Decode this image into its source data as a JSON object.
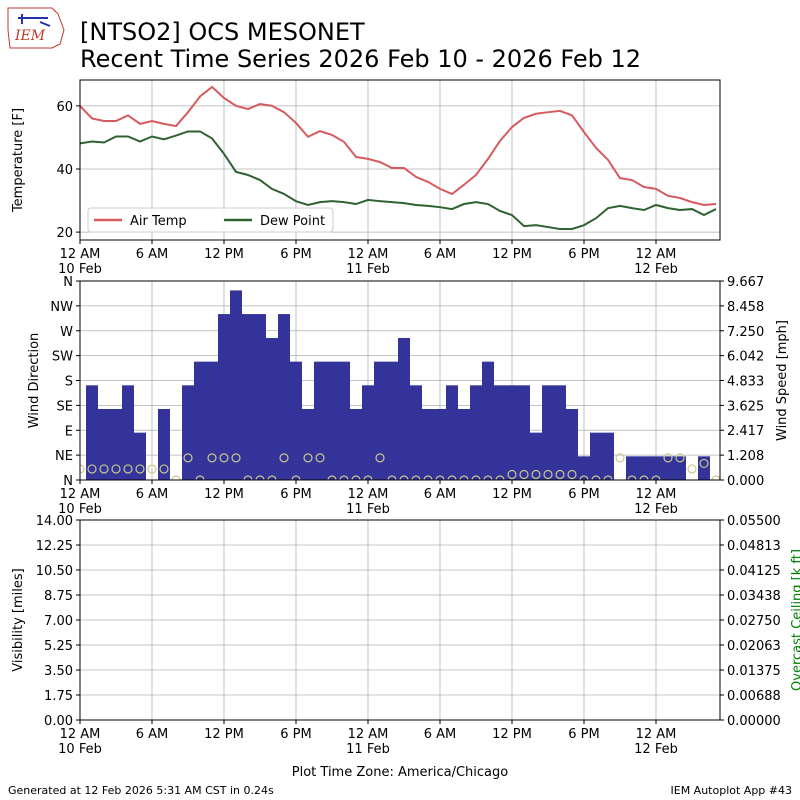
{
  "header": {
    "title": "[NTSO2] OCS MESONET",
    "subtitle": "Recent Time Series 2026 Feb 10 - 2026 Feb 12",
    "logo": "IEM"
  },
  "footer": {
    "left": "Generated at 12 Feb 2026 5:31 AM CST in 0.24s",
    "right": "IEM Autoplot App #43"
  },
  "chart_data": [
    {
      "type": "line",
      "ylabel": "Temperature [F]",
      "grid": true,
      "legend": "lower left",
      "xlim": [
        "2026-02-10 00:00",
        "2026-02-12 05:20"
      ],
      "xticks": [
        {
          "value": "2026-02-10 00:00",
          "label": "12 AM\n10 Feb"
        },
        {
          "value": "2026-02-10 06:00",
          "label": "6 AM"
        },
        {
          "value": "2026-02-10 12:00",
          "label": "12 PM"
        },
        {
          "value": "2026-02-10 18:00",
          "label": "6 PM"
        },
        {
          "value": "2026-02-11 00:00",
          "label": "12 AM\n11 Feb"
        },
        {
          "value": "2026-02-11 06:00",
          "label": "6 AM"
        },
        {
          "value": "2026-02-11 12:00",
          "label": "12 PM"
        },
        {
          "value": "2026-02-11 18:00",
          "label": "6 PM"
        },
        {
          "value": "2026-02-12 00:00",
          "label": "12 AM\n12 Feb"
        }
      ],
      "ylim": [
        17.5,
        68.2
      ],
      "yticks": [
        20,
        40,
        60
      ],
      "x": [
        "2026-02-10 00:00",
        "2026-02-10 01:00",
        "2026-02-10 02:00",
        "2026-02-10 03:00",
        "2026-02-10 04:00",
        "2026-02-10 05:00",
        "2026-02-10 06:00",
        "2026-02-10 07:00",
        "2026-02-10 08:00",
        "2026-02-10 09:00",
        "2026-02-10 10:00",
        "2026-02-10 11:00",
        "2026-02-10 12:00",
        "2026-02-10 13:00",
        "2026-02-10 14:00",
        "2026-02-10 15:00",
        "2026-02-10 16:00",
        "2026-02-10 17:00",
        "2026-02-10 18:00",
        "2026-02-10 19:00",
        "2026-02-10 20:00",
        "2026-02-10 21:00",
        "2026-02-10 22:00",
        "2026-02-10 23:00",
        "2026-02-11 00:00",
        "2026-02-11 01:00",
        "2026-02-11 02:00",
        "2026-02-11 03:00",
        "2026-02-11 04:00",
        "2026-02-11 05:00",
        "2026-02-11 06:00",
        "2026-02-11 07:00",
        "2026-02-11 08:00",
        "2026-02-11 09:00",
        "2026-02-11 10:00",
        "2026-02-11 11:00",
        "2026-02-11 12:00",
        "2026-02-11 13:00",
        "2026-02-11 14:00",
        "2026-02-11 15:00",
        "2026-02-11 16:00",
        "2026-02-11 17:00",
        "2026-02-11 18:00",
        "2026-02-11 19:00",
        "2026-02-11 20:00",
        "2026-02-11 21:00",
        "2026-02-11 22:00",
        "2026-02-11 23:00",
        "2026-02-12 00:00",
        "2026-02-12 01:00",
        "2026-02-12 02:00",
        "2026-02-12 03:00",
        "2026-02-12 04:00",
        "2026-02-12 05:00"
      ],
      "series": [
        {
          "name": "Air Temp",
          "color": "#d65a5e",
          "values": [
            60,
            56,
            55.2,
            55.2,
            57,
            54.3,
            55.2,
            54.3,
            53.6,
            58,
            63,
            66,
            62.5,
            60,
            59,
            60.6,
            60,
            58,
            54.6,
            50.2,
            52,
            50.8,
            48.6,
            43.8,
            43.2,
            42.2,
            40.3,
            40.3,
            37.5,
            35.9,
            33.7,
            32.1,
            35,
            38.1,
            43.2,
            48.9,
            53.3,
            56.2,
            57.5,
            58,
            58.4,
            57,
            51.7,
            46.7,
            42.9,
            37.1,
            36.5,
            34.3,
            33.7,
            31.5,
            30.8,
            29.5,
            28.6,
            28.9
          ]
        },
        {
          "name": "Dew Point",
          "color": "#2e6230",
          "values": [
            48.1,
            48.7,
            48.4,
            50.3,
            50.3,
            48.7,
            50.3,
            49.4,
            50.6,
            51.9,
            51.9,
            49.7,
            44.8,
            39.1,
            38.1,
            36.5,
            33.7,
            32.1,
            29.8,
            28.6,
            29.5,
            29.8,
            29.5,
            28.9,
            30.2,
            29.8,
            29.5,
            29.2,
            28.6,
            28.3,
            27.9,
            27.3,
            28.9,
            29.5,
            28.9,
            26.7,
            25.4,
            21.9,
            22.2,
            21.6,
            21,
            21,
            22.2,
            24.4,
            27.6,
            28.3,
            27.6,
            27,
            28.6,
            27.6,
            27,
            27.3,
            25.4,
            27.3
          ]
        }
      ]
    },
    {
      "type": "bar",
      "ylabel": "Wind Direction",
      "y2label": "Wind Speed [mph]",
      "grid": true,
      "xlim": [
        "2026-02-10 00:00",
        "2026-02-12 05:20"
      ],
      "xticks": [
        {
          "value": "2026-02-10 00:00",
          "label": "12 AM\n10 Feb"
        },
        {
          "value": "2026-02-10 06:00",
          "label": "6 AM"
        },
        {
          "value": "2026-02-10 12:00",
          "label": "12 PM"
        },
        {
          "value": "2026-02-10 18:00",
          "label": "6 PM"
        },
        {
          "value": "2026-02-11 00:00",
          "label": "12 AM\n11 Feb"
        },
        {
          "value": "2026-02-11 06:00",
          "label": "6 AM"
        },
        {
          "value": "2026-02-11 12:00",
          "label": "12 PM"
        },
        {
          "value": "2026-02-11 18:00",
          "label": "6 PM"
        },
        {
          "value": "2026-02-12 00:00",
          "label": "12 AM\n12 Feb"
        }
      ],
      "ylim": [
        0,
        360
      ],
      "yticks": [
        {
          "value": 0,
          "label": "N"
        },
        {
          "value": 45,
          "label": "NE"
        },
        {
          "value": 90,
          "label": "E"
        },
        {
          "value": 135,
          "label": "SE"
        },
        {
          "value": 180,
          "label": "S"
        },
        {
          "value": 225,
          "label": "SW"
        },
        {
          "value": 270,
          "label": "W"
        },
        {
          "value": 315,
          "label": "NW"
        },
        {
          "value": 360,
          "label": "N"
        }
      ],
      "y2lim": [
        0,
        9.667
      ],
      "y2ticks": [
        {
          "value": 0,
          "label": "0.000"
        },
        1.208,
        2.417,
        3.625,
        4.833,
        6.042,
        {
          "value": 7.25,
          "label": "7.250"
        },
        8.458,
        9.667
      ],
      "x": [
        "2026-02-10 00:00",
        "2026-02-10 01:00",
        "2026-02-10 02:00",
        "2026-02-10 03:00",
        "2026-02-10 04:00",
        "2026-02-10 05:00",
        "2026-02-10 06:00",
        "2026-02-10 07:00",
        "2026-02-10 08:00",
        "2026-02-10 09:00",
        "2026-02-10 10:00",
        "2026-02-10 11:00",
        "2026-02-10 12:00",
        "2026-02-10 13:00",
        "2026-02-10 14:00",
        "2026-02-10 15:00",
        "2026-02-10 16:00",
        "2026-02-10 17:00",
        "2026-02-10 18:00",
        "2026-02-10 19:00",
        "2026-02-10 20:00",
        "2026-02-10 21:00",
        "2026-02-10 22:00",
        "2026-02-10 23:00",
        "2026-02-11 00:00",
        "2026-02-11 01:00",
        "2026-02-11 02:00",
        "2026-02-11 03:00",
        "2026-02-11 04:00",
        "2026-02-11 05:00",
        "2026-02-11 06:00",
        "2026-02-11 07:00",
        "2026-02-11 08:00",
        "2026-02-11 09:00",
        "2026-02-11 10:00",
        "2026-02-11 11:00",
        "2026-02-11 12:00",
        "2026-02-11 13:00",
        "2026-02-11 14:00",
        "2026-02-11 15:00",
        "2026-02-11 16:00",
        "2026-02-11 17:00",
        "2026-02-11 18:00",
        "2026-02-11 19:00",
        "2026-02-11 20:00",
        "2026-02-11 21:00",
        "2026-02-11 22:00",
        "2026-02-11 23:00",
        "2026-02-12 00:00",
        "2026-02-12 01:00",
        "2026-02-12 02:00",
        "2026-02-12 03:00",
        "2026-02-12 04:00",
        "2026-02-12 05:00"
      ],
      "series": [
        {
          "type": "bar",
          "axis": "y2",
          "color": "#333399",
          "x": [
            "2026-02-10 01:00",
            "2026-02-10 02:00",
            "2026-02-10 03:00",
            "2026-02-10 04:00",
            "2026-02-10 05:00",
            "2026-02-10 06:00",
            "2026-02-10 07:00",
            "2026-02-10 08:00",
            "2026-02-10 09:00",
            "2026-02-10 10:00",
            "2026-02-10 11:00",
            "2026-02-10 12:00",
            "2026-02-10 13:00",
            "2026-02-10 14:00",
            "2026-02-10 15:00",
            "2026-02-10 16:00",
            "2026-02-10 17:00",
            "2026-02-10 18:00",
            "2026-02-10 19:00",
            "2026-02-10 20:00",
            "2026-02-10 21:00",
            "2026-02-10 22:00",
            "2026-02-10 23:00",
            "2026-02-11 00:00",
            "2026-02-11 01:00",
            "2026-02-11 02:00",
            "2026-02-11 03:00",
            "2026-02-11 04:00",
            "2026-02-11 05:00",
            "2026-02-11 06:00",
            "2026-02-11 07:00",
            "2026-02-11 08:00",
            "2026-02-11 09:00",
            "2026-02-11 10:00",
            "2026-02-11 11:00",
            "2026-02-11 12:00",
            "2026-02-11 13:00",
            "2026-02-11 14:00",
            "2026-02-11 15:00",
            "2026-02-11 16:00",
            "2026-02-11 17:00",
            "2026-02-11 18:00",
            "2026-02-11 19:00",
            "2026-02-11 20:00",
            "2026-02-11 21:00",
            "2026-02-11 22:00",
            "2026-02-11 23:00",
            "2026-02-12 00:00",
            "2026-02-12 01:00",
            "2026-02-12 02:00",
            "2026-02-12 03:00",
            "2026-02-12 04:00"
          ],
          "values": [
            4.6,
            3.45,
            3.45,
            4.6,
            2.3,
            0,
            3.45,
            0,
            4.6,
            5.75,
            5.75,
            8.06,
            9.21,
            8.06,
            8.06,
            6.9,
            8.06,
            5.75,
            3.45,
            5.75,
            5.75,
            5.75,
            3.45,
            4.6,
            5.75,
            5.75,
            6.9,
            4.6,
            3.45,
            3.45,
            4.6,
            3.45,
            4.6,
            5.75,
            4.6,
            4.6,
            4.6,
            2.3,
            4.6,
            4.6,
            3.45,
            1.15,
            2.3,
            2.3,
            0,
            1.15,
            1.15,
            1.15,
            1.15,
            1.15,
            0,
            1.15
          ]
        },
        {
          "type": "scatter",
          "color": "#c9c98c",
          "values": [
            20,
            20,
            20,
            20,
            20,
            20,
            20,
            20,
            0,
            40,
            0,
            40,
            40,
            40,
            0,
            0,
            0,
            40,
            0,
            40,
            40,
            0,
            0,
            0,
            0,
            40,
            0,
            0,
            0,
            0,
            0,
            0,
            0,
            0,
            0,
            0,
            10,
            10,
            10,
            10,
            10,
            10,
            0,
            0,
            0,
            40,
            0,
            0,
            0,
            40,
            40,
            20,
            30,
            0
          ]
        }
      ]
    },
    {
      "type": "line",
      "ylabel": "Visibility [miles]",
      "y2label": "Overcast Ceiling [k ft]",
      "y2color": "#008000",
      "grid": true,
      "xlabel": "Plot Time Zone: America/Chicago",
      "xlim": [
        "2026-02-10 00:00",
        "2026-02-12 05:20"
      ],
      "xticks": [
        {
          "value": "2026-02-10 00:00",
          "label": "12 AM\n10 Feb"
        },
        {
          "value": "2026-02-10 06:00",
          "label": "6 AM"
        },
        {
          "value": "2026-02-10 12:00",
          "label": "12 PM"
        },
        {
          "value": "2026-02-10 18:00",
          "label": "6 PM"
        },
        {
          "value": "2026-02-11 00:00",
          "label": "12 AM\n11 Feb"
        },
        {
          "value": "2026-02-11 06:00",
          "label": "6 AM"
        },
        {
          "value": "2026-02-11 12:00",
          "label": "12 PM"
        },
        {
          "value": "2026-02-11 18:00",
          "label": "6 PM"
        },
        {
          "value": "2026-02-12 00:00",
          "label": "12 AM\n12 Feb"
        }
      ],
      "ylim": [
        0,
        14
      ],
      "yticks": [
        {
          "value": 0,
          "label": "0.00"
        },
        1.75,
        {
          "value": 3.5,
          "label": "3.50"
        },
        5.25,
        {
          "value": 7,
          "label": "7.00"
        },
        8.75,
        {
          "value": 10.5,
          "label": "10.50"
        },
        12.25,
        {
          "value": 14,
          "label": "14.00"
        }
      ],
      "y2lim": [
        0,
        0.055
      ],
      "y2ticks": [
        {
          "value": 0,
          "label": "0.00000"
        },
        0.00688,
        0.01375,
        0.02063,
        {
          "value": 0.0275,
          "label": "0.02750"
        },
        0.03438,
        0.04125,
        0.04813,
        {
          "value": 0.055,
          "label": "0.05500"
        }
      ]
    }
  ]
}
